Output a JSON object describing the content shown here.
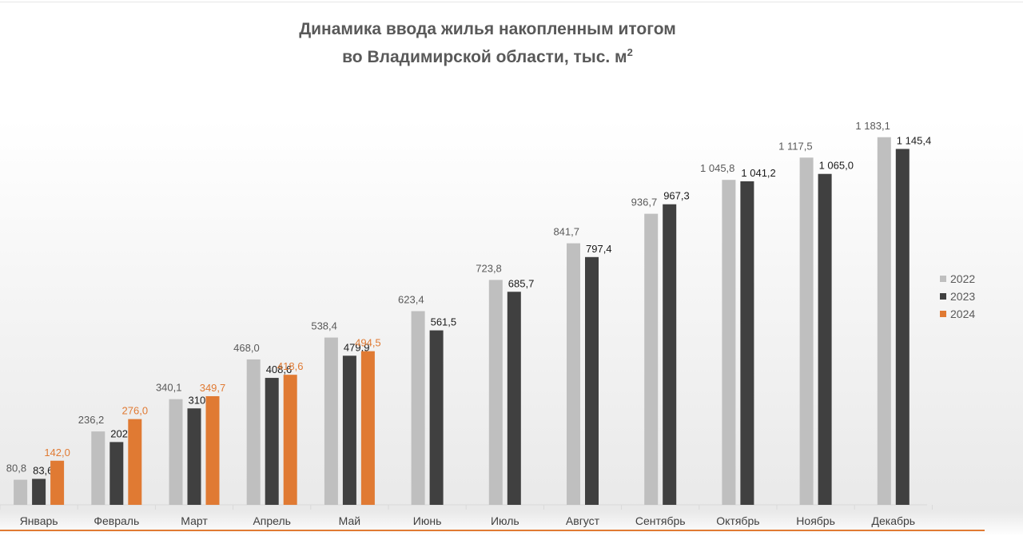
{
  "chart_data": {
    "type": "bar",
    "title_line1": "Динамика ввода жилья накопленным итогом",
    "title_line2": "во Владимирской области, тыс. м",
    "title_unit_sup": "2",
    "categories": [
      "Январь",
      "Февраль",
      "Март",
      "Апрель",
      "Май",
      "Июнь",
      "Июль",
      "Август",
      "Сентябрь",
      "Октябрь",
      "Ноябрь",
      "Декабрь"
    ],
    "series": [
      {
        "name": "2022",
        "color": "#bfbfbf",
        "label_color": "#595959",
        "values": [
          80.8,
          236.2,
          340.1,
          468.0,
          538.4,
          623.4,
          723.8,
          841.7,
          936.7,
          1045.8,
          1117.5,
          1183.1
        ],
        "labels": [
          "80,8",
          "236,2",
          "340,1",
          "468,0",
          "538,4",
          "623,4",
          "723,8",
          "841,7",
          "936,7",
          "1 045,8",
          "1 117,5",
          "1 183,1"
        ]
      },
      {
        "name": "2023",
        "color": "#404040",
        "label_color": "#1a1a1a",
        "values": [
          83.6,
          202.1,
          310.4,
          408.6,
          479.9,
          561.5,
          685.7,
          797.4,
          967.3,
          1041.2,
          1065.0,
          1145.4
        ],
        "labels": [
          "83,6",
          "202,1",
          "310,4",
          "408,6",
          "479,9",
          "561,5",
          "685,7",
          "797,4",
          "967,3",
          "1 041,2",
          "1 065,0",
          "1 145,4"
        ]
      },
      {
        "name": "2024",
        "color": "#e07a33",
        "label_color": "#e07a33",
        "values": [
          142.0,
          276.0,
          349.7,
          418.6,
          494.5,
          null,
          null,
          null,
          null,
          null,
          null,
          null
        ],
        "labels": [
          "142,0",
          "276,0",
          "349,7",
          "418,6",
          "494,5",
          "",
          "",
          "",
          "",
          "",
          "",
          ""
        ]
      }
    ],
    "ylim": [
      0,
      1250
    ],
    "grid": false,
    "legend": "right"
  }
}
